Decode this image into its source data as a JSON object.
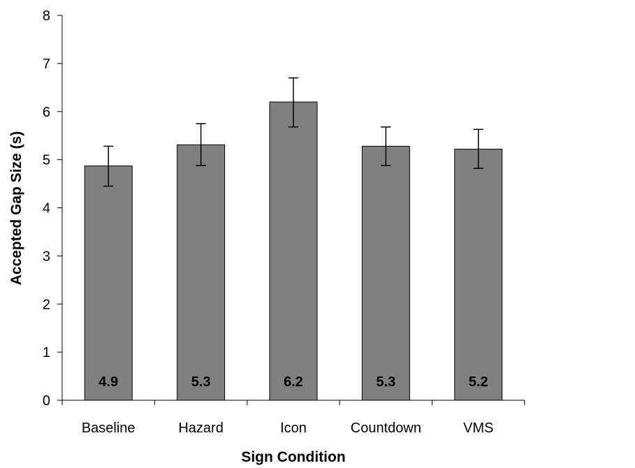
{
  "chart_data": {
    "type": "bar",
    "categories": [
      "Baseline",
      "Hazard",
      "Icon",
      "Countdown",
      "VMS"
    ],
    "values": [
      4.87,
      5.31,
      6.2,
      5.28,
      5.22
    ],
    "data_labels": [
      "4.9",
      "5.3",
      "6.2",
      "5.3",
      "5.2"
    ],
    "error_low": [
      4.45,
      4.88,
      5.68,
      4.88,
      4.82
    ],
    "error_high": [
      5.28,
      5.75,
      6.7,
      5.68,
      5.63
    ],
    "xlabel": "Sign Condition",
    "ylabel": "Accepted Gap Size (s)",
    "ylim": [
      0,
      8
    ],
    "yticks": [
      "0",
      "1",
      "2",
      "3",
      "4",
      "5",
      "6",
      "7",
      "8"
    ],
    "grid": false,
    "legend": "none",
    "bar_color": "#808080"
  }
}
